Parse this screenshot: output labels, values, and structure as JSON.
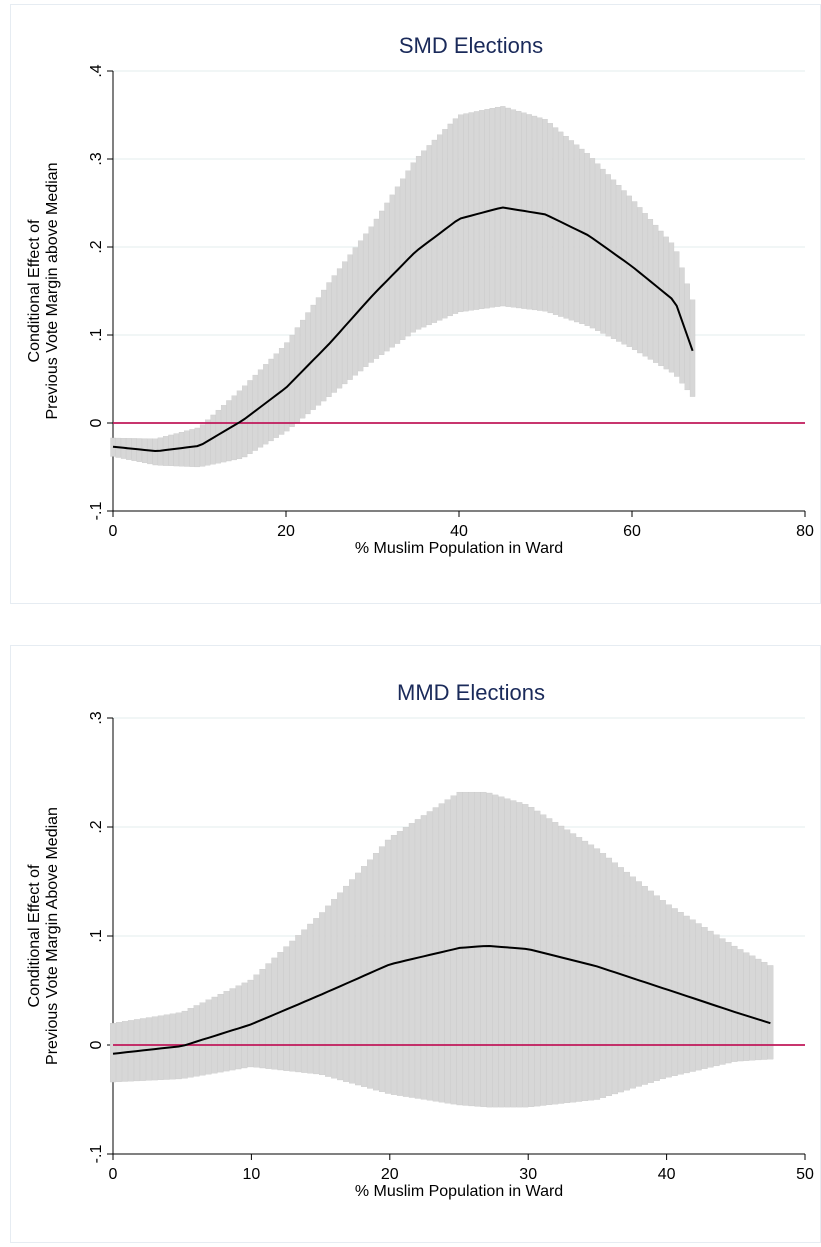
{
  "colors": {
    "band": "#d7d7d7",
    "band_edge": "#c4c4c4",
    "line": "#000000",
    "zero_line": "#c0185a",
    "grid": "#e3ecec",
    "title": "#1a2a5a"
  },
  "chart_data": [
    {
      "type": "area",
      "title": "SMD Elections",
      "xlabel": "% Muslim Population in Ward",
      "ylabel_line1": "Conditional Effect of",
      "ylabel_line2": "Previous Vote Margin above Median",
      "xlim": [
        0,
        80
      ],
      "ylim": [
        -0.1,
        0.4
      ],
      "xticks": [
        0,
        20,
        40,
        60,
        80
      ],
      "xtick_labels": [
        "0",
        "20",
        "40",
        "60",
        "80"
      ],
      "yticks": [
        -0.1,
        0,
        0.1,
        0.2,
        0.3,
        0.4
      ],
      "ytick_labels": [
        "-.1",
        "0",
        ".1",
        ".2",
        ".3",
        ".4"
      ],
      "grid": true,
      "reference_line_y": 0,
      "series": [
        {
          "x": [
            0,
            5,
            10,
            15,
            20,
            25,
            30,
            35,
            40,
            45,
            50,
            55,
            60,
            65,
            67
          ],
          "estimate": [
            -0.027,
            -0.032,
            -0.026,
            0.003,
            0.04,
            0.09,
            0.145,
            0.195,
            0.232,
            0.245,
            0.237,
            0.213,
            0.178,
            0.138,
            0.082
          ],
          "lower": [
            -0.038,
            -0.048,
            -0.05,
            -0.04,
            -0.01,
            0.03,
            0.07,
            0.105,
            0.126,
            0.133,
            0.127,
            0.11,
            0.085,
            0.055,
            0.03
          ],
          "upper": [
            -0.017,
            -0.018,
            -0.005,
            0.04,
            0.09,
            0.16,
            0.225,
            0.3,
            0.35,
            0.36,
            0.345,
            0.305,
            0.255,
            0.2,
            0.14
          ]
        }
      ]
    },
    {
      "type": "area",
      "title": "MMD Elections",
      "xlabel": "% Muslim Population in Ward",
      "ylabel_line1": "Conditional Effect of",
      "ylabel_line2": "Previous Vote Margin Above Median",
      "xlim": [
        0,
        50
      ],
      "ylim": [
        -0.1,
        0.3
      ],
      "xticks": [
        0,
        10,
        20,
        30,
        40,
        50
      ],
      "xtick_labels": [
        "0",
        "10",
        "20",
        "30",
        "40",
        "50"
      ],
      "yticks": [
        -0.1,
        0,
        0.1,
        0.2,
        0.3
      ],
      "ytick_labels": [
        "-.1",
        "0",
        ".1",
        ".2",
        ".3"
      ],
      "grid": true,
      "reference_line_y": 0,
      "series": [
        {
          "x": [
            0,
            5,
            10,
            15,
            20,
            25,
            27,
            30,
            35,
            40,
            45,
            47.5
          ],
          "estimate": [
            -0.008,
            -0.001,
            0.019,
            0.046,
            0.074,
            0.089,
            0.091,
            0.088,
            0.072,
            0.051,
            0.03,
            0.02
          ],
          "lower": [
            -0.034,
            -0.031,
            -0.02,
            -0.027,
            -0.045,
            -0.055,
            -0.057,
            -0.057,
            -0.05,
            -0.03,
            -0.015,
            -0.013
          ],
          "upper": [
            0.02,
            0.03,
            0.06,
            0.12,
            0.19,
            0.232,
            0.232,
            0.22,
            0.18,
            0.13,
            0.09,
            0.073
          ]
        }
      ]
    }
  ]
}
